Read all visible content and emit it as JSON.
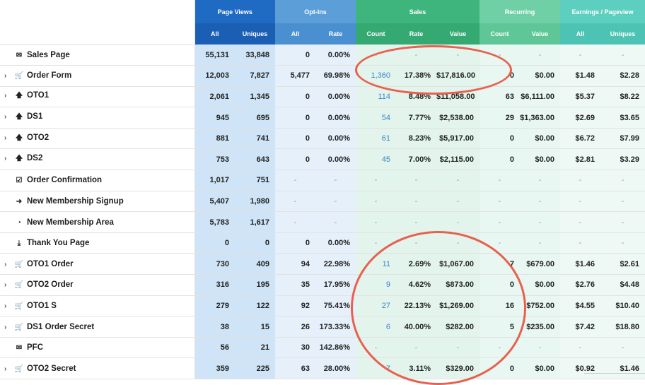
{
  "headers": {
    "groups": [
      "Page Views",
      "Opt-Ins",
      "Sales",
      "Recurring",
      "Earnings / Pageview"
    ],
    "sub": [
      "All",
      "Uniques",
      "All",
      "Rate",
      "Count",
      "Rate",
      "Value",
      "Count",
      "Value",
      "All",
      "Uniques"
    ]
  },
  "rows": [
    {
      "name": "Sales Page",
      "icon": "envelope-icon",
      "glyph": "✉",
      "expand": false,
      "cells": [
        "55,131",
        "33,848",
        "0",
        "0.00%",
        "-",
        "-",
        "-",
        "-",
        "-",
        "-",
        "-"
      ]
    },
    {
      "name": "Order Form",
      "icon": "cart-icon",
      "glyph": "🛒",
      "expand": true,
      "cells": [
        "12,003",
        "7,827",
        "5,477",
        "69.98%",
        "1,360",
        "17.38%",
        "$17,816.00",
        "0",
        "$0.00",
        "$1.48",
        "$2.28"
      ]
    },
    {
      "name": "OTO1",
      "icon": "arrow-up-icon",
      "glyph": "🡅",
      "expand": true,
      "cells": [
        "2,061",
        "1,345",
        "0",
        "0.00%",
        "114",
        "8.48%",
        "$11,058.00",
        "63",
        "$6,111.00",
        "$5.37",
        "$8.22"
      ]
    },
    {
      "name": "DS1",
      "icon": "arrow-up-icon",
      "glyph": "🡅",
      "expand": true,
      "cells": [
        "945",
        "695",
        "0",
        "0.00%",
        "54",
        "7.77%",
        "$2,538.00",
        "29",
        "$1,363.00",
        "$2.69",
        "$3.65"
      ]
    },
    {
      "name": "OTO2",
      "icon": "arrow-up-icon",
      "glyph": "🡅",
      "expand": true,
      "cells": [
        "881",
        "741",
        "0",
        "0.00%",
        "61",
        "8.23%",
        "$5,917.00",
        "0",
        "$0.00",
        "$6.72",
        "$7.99"
      ]
    },
    {
      "name": "DS2",
      "icon": "arrow-up-icon",
      "glyph": "🡅",
      "expand": true,
      "cells": [
        "753",
        "643",
        "0",
        "0.00%",
        "45",
        "7.00%",
        "$2,115.00",
        "0",
        "$0.00",
        "$2.81",
        "$3.29"
      ]
    },
    {
      "name": "Order Confirmation",
      "icon": "checkbox-icon",
      "glyph": "☑",
      "expand": false,
      "cells": [
        "1,017",
        "751",
        "-",
        "-",
        "-",
        "-",
        "-",
        "-",
        "-",
        "-",
        "-"
      ]
    },
    {
      "name": "New Membership Signup",
      "icon": "sign-in-icon",
      "glyph": "➜",
      "expand": false,
      "cells": [
        "5,407",
        "1,980",
        "-",
        "-",
        "-",
        "-",
        "-",
        "-",
        "-",
        "-",
        "-"
      ]
    },
    {
      "name": "New Membership Area",
      "icon": "dashboard-icon",
      "glyph": "◔",
      "expand": false,
      "cells": [
        "5,783",
        "1,617",
        "-",
        "-",
        "-",
        "-",
        "-",
        "-",
        "-",
        "-",
        "-"
      ]
    },
    {
      "name": "Thank You Page",
      "icon": "download-icon",
      "glyph": "⤓",
      "expand": false,
      "cells": [
        "0",
        "0",
        "0",
        "0.00%",
        "-",
        "-",
        "-",
        "-",
        "-",
        "-",
        "-"
      ]
    },
    {
      "name": "OTO1 Order",
      "icon": "cart-icon",
      "glyph": "🛒",
      "expand": true,
      "cells": [
        "730",
        "409",
        "94",
        "22.98%",
        "11",
        "2.69%",
        "$1,067.00",
        "7",
        "$679.00",
        "$1.46",
        "$2.61"
      ]
    },
    {
      "name": "OTO2 Order",
      "icon": "cart-icon",
      "glyph": "🛒",
      "expand": true,
      "cells": [
        "316",
        "195",
        "35",
        "17.95%",
        "9",
        "4.62%",
        "$873.00",
        "0",
        "$0.00",
        "$2.76",
        "$4.48"
      ]
    },
    {
      "name": "OTO1 S",
      "icon": "cart-icon",
      "glyph": "🛒",
      "expand": true,
      "cells": [
        "279",
        "122",
        "92",
        "75.41%",
        "27",
        "22.13%",
        "$1,269.00",
        "16",
        "$752.00",
        "$4.55",
        "$10.40"
      ]
    },
    {
      "name": "DS1 Order Secret",
      "icon": "cart-icon",
      "glyph": "🛒",
      "expand": true,
      "cells": [
        "38",
        "15",
        "26",
        "173.33%",
        "6",
        "40.00%",
        "$282.00",
        "5",
        "$235.00",
        "$7.42",
        "$18.80"
      ]
    },
    {
      "name": "PFC",
      "icon": "envelope-icon",
      "glyph": "✉",
      "expand": false,
      "cells": [
        "56",
        "21",
        "30",
        "142.86%",
        "-",
        "-",
        "-",
        "-",
        "-",
        "-",
        "-"
      ]
    },
    {
      "name": "OTO2 Secret",
      "icon": "cart-icon",
      "glyph": "🛒",
      "expand": true,
      "cells": [
        "359",
        "225",
        "63",
        "28.00%",
        "7",
        "3.11%",
        "$329.00",
        "0",
        "$0.00",
        "$0.92",
        "$1.46"
      ]
    }
  ],
  "colors": {
    "annotation": "#e8604e",
    "link": "#3a86c8"
  }
}
